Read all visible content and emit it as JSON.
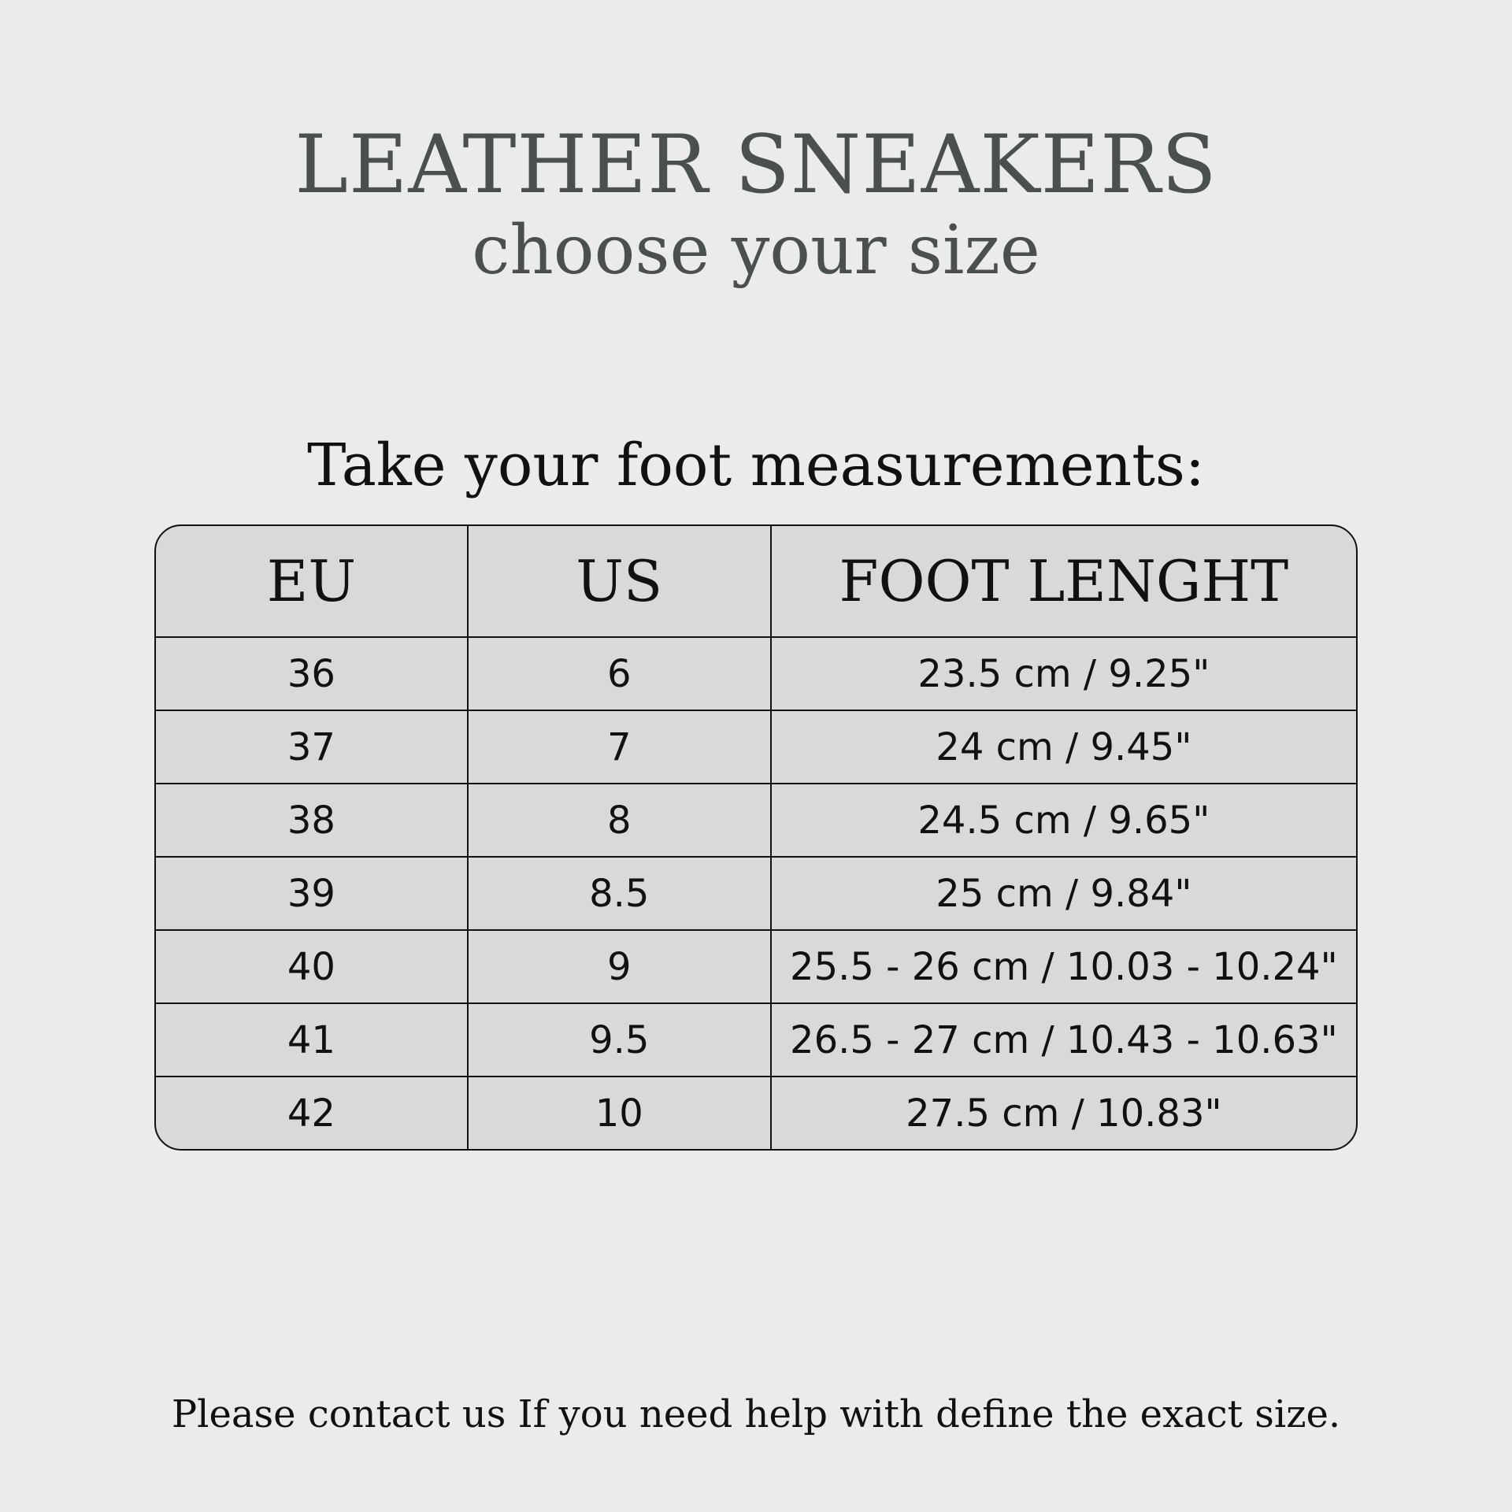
{
  "title": "LEATHER SNEAKERS",
  "subtitle": "choose your size",
  "instruction": "Take your foot measurements:",
  "table": {
    "headers": [
      "EU",
      "US",
      "FOOT LENGHT"
    ],
    "rows": [
      [
        "36",
        "6",
        "23.5 cm / 9.25\""
      ],
      [
        "37",
        "7",
        "24 cm / 9.45\""
      ],
      [
        "38",
        "8",
        "24.5 cm / 9.65\""
      ],
      [
        "39",
        "8.5",
        "25 cm / 9.84\""
      ],
      [
        "40",
        "9",
        "25.5 - 26 cm / 10.03 - 10.24\""
      ],
      [
        "41",
        "9.5",
        "26.5 - 27 cm / 10.43 - 10.63\""
      ],
      [
        "42",
        "10",
        "27.5 cm / 10.83\""
      ]
    ]
  },
  "footer": "Please contact us If you need help with define the exact size.",
  "colors": {
    "background": "#ebebeb",
    "table_fill": "#d9d9d9",
    "title": "#4a4f4f"
  }
}
